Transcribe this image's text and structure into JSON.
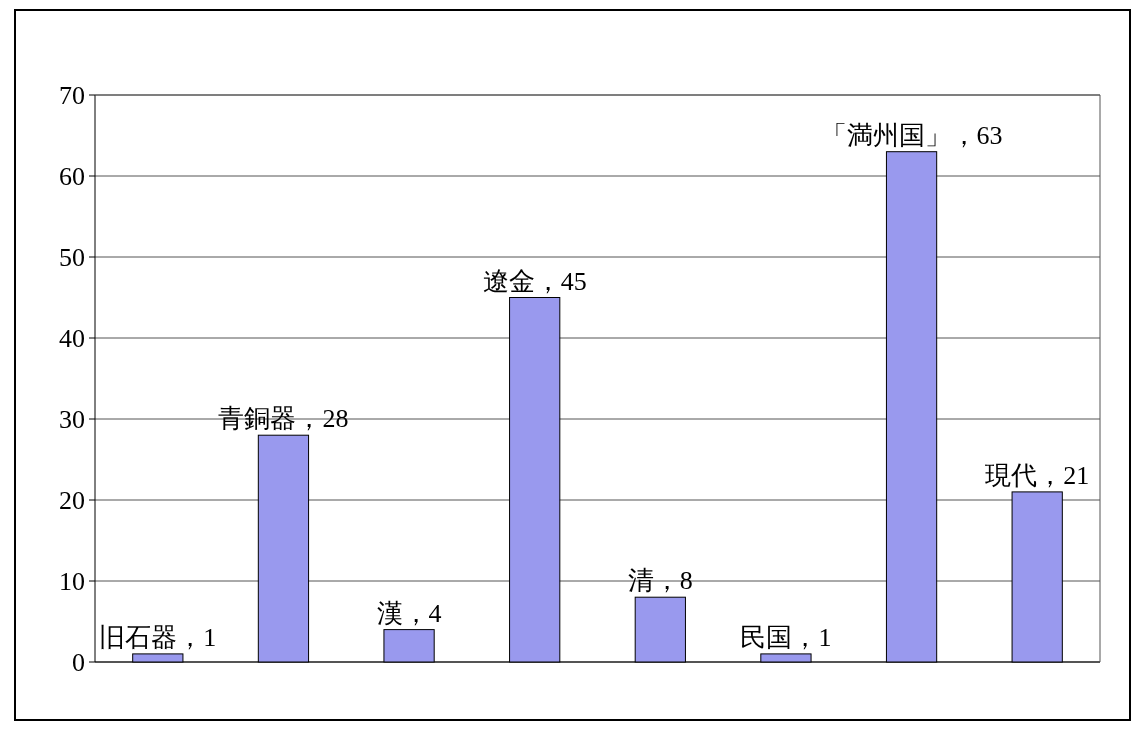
{
  "chart_data": {
    "type": "bar",
    "categories": [
      null,
      null,
      null,
      null,
      null,
      null,
      null,
      null
    ],
    "values": [
      1,
      28,
      4,
      45,
      8,
      1,
      63,
      21
    ],
    "value_labels": [
      "旧石器，1",
      "青銅器，28",
      "漢，4",
      "遼金，45",
      "清，8",
      "民国，1",
      "「満州国」，63",
      "現代，21"
    ],
    "color": "#9999ee",
    "ylim": [
      0,
      70
    ],
    "yticks": [
      0,
      10,
      20,
      30,
      40,
      50,
      60,
      70
    ],
    "grid": "y"
  }
}
